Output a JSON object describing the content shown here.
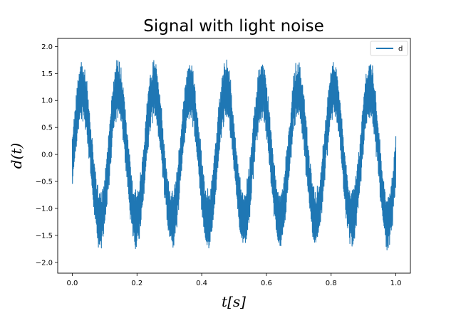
{
  "chart_data": {
    "type": "line",
    "title": "Signal with light noise",
    "xlabel": "t[s]",
    "ylabel": "d(t)",
    "xlim": [
      -0.045,
      1.045
    ],
    "ylim": [
      -2.2,
      2.15
    ],
    "xticks": [
      0.0,
      0.2,
      0.4,
      0.6,
      0.8,
      1.0
    ],
    "xtick_labels": [
      "0.0",
      "0.2",
      "0.4",
      "0.6",
      "0.8",
      "1.0"
    ],
    "yticks": [
      -2.0,
      -1.5,
      -1.0,
      -0.5,
      0.0,
      0.5,
      1.0,
      1.5,
      2.0
    ],
    "ytick_labels": [
      "−2.0",
      "−1.5",
      "−1.0",
      "−0.5",
      "0.0",
      "0.5",
      "1.0",
      "1.5",
      "2.0"
    ],
    "grid": false,
    "legend_position": "top-right",
    "series": [
      {
        "name": "d",
        "color": "#1f77b4",
        "x_range": [
          0.0,
          1.0
        ],
        "sine_frequency_hz": 9,
        "sine_amplitude": 1.2,
        "peak_max": 1.82,
        "trough_min": -1.97,
        "high_frequency_band_amplitude": 0.5
      }
    ]
  }
}
